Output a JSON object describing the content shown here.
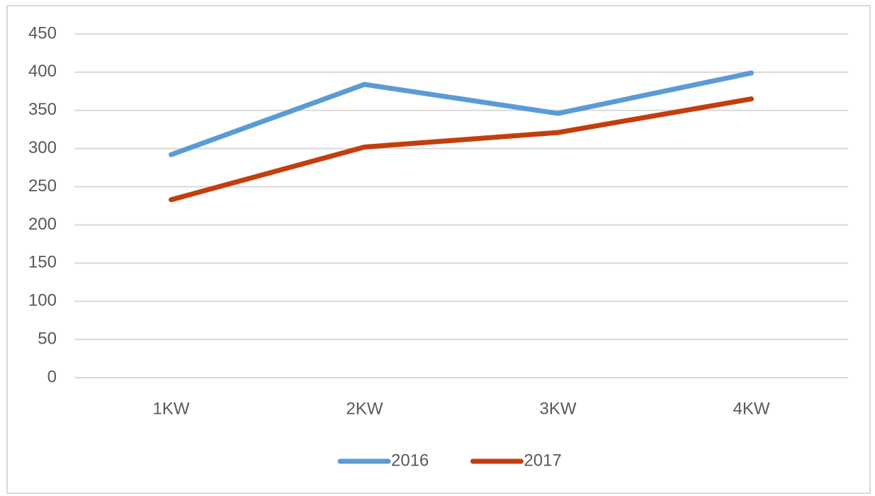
{
  "chart_data": {
    "type": "line",
    "categories": [
      "1KW",
      "2KW",
      "3KW",
      "4KW"
    ],
    "series": [
      {
        "name": "2016",
        "color": "#5b9bd5",
        "values": [
          292,
          384,
          346,
          399
        ]
      },
      {
        "name": "2017",
        "color": "#c43e0c",
        "values": [
          233,
          302,
          321,
          365
        ]
      }
    ],
    "ylim": [
      0,
      450
    ],
    "yticks": [
      0,
      50,
      100,
      150,
      200,
      250,
      300,
      350,
      400,
      450
    ],
    "grid": true,
    "legend": "bottom"
  }
}
